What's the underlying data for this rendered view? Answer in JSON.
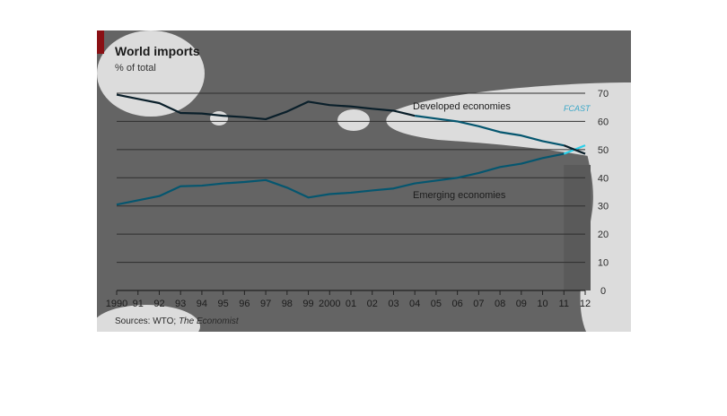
{
  "title": "World imports",
  "subtitle": "% of total",
  "source_prefix": "Sources: WTO; ",
  "source_italic": "The Economist",
  "forecast_label": "FCAST",
  "colors": {
    "panel_background": "#646464",
    "developed_line": "#05566f",
    "developed_line_historical": "#0a1f2a",
    "emerging_line": "#05566f",
    "forecast_segment": "#2ad0ea",
    "forecast_shade": "#5a5a5a",
    "accent_bar": "#8a1014"
  },
  "chart_data": {
    "type": "line",
    "title": "World imports",
    "subtitle": "% of total",
    "xlabel": "",
    "ylabel": "",
    "x": [
      1990,
      1991,
      1992,
      1993,
      1994,
      1995,
      1996,
      1997,
      1998,
      1999,
      2000,
      2001,
      2002,
      2003,
      2004,
      2005,
      2006,
      2007,
      2008,
      2009,
      2010,
      2011,
      2012
    ],
    "x_tick_labels": [
      "1990",
      "91",
      "92",
      "93",
      "94",
      "95",
      "96",
      "97",
      "98",
      "99",
      "2000",
      "01",
      "02",
      "03",
      "04",
      "05",
      "06",
      "07",
      "08",
      "09",
      "10",
      "11",
      "12"
    ],
    "ylim": [
      0,
      70
    ],
    "y_ticks": [
      0,
      10,
      20,
      30,
      40,
      50,
      60,
      70
    ],
    "y_axis_position": "right",
    "grid": true,
    "forecast_start": 2011,
    "series": [
      {
        "name": "Developed economies",
        "values": [
          69.5,
          68.0,
          66.5,
          63.0,
          62.8,
          62.0,
          61.5,
          60.8,
          63.5,
          67.0,
          65.8,
          65.3,
          64.5,
          63.8,
          62.0,
          61.0,
          60.0,
          58.3,
          56.2,
          55.0,
          53.0,
          51.5,
          48.5
        ]
      },
      {
        "name": "Emerging economies",
        "values": [
          30.5,
          32.0,
          33.5,
          37.0,
          37.2,
          38.0,
          38.5,
          39.2,
          36.5,
          33.0,
          34.2,
          34.7,
          35.5,
          36.2,
          38.0,
          39.0,
          40.0,
          41.7,
          43.8,
          45.0,
          47.0,
          48.5,
          51.5
        ]
      }
    ]
  }
}
